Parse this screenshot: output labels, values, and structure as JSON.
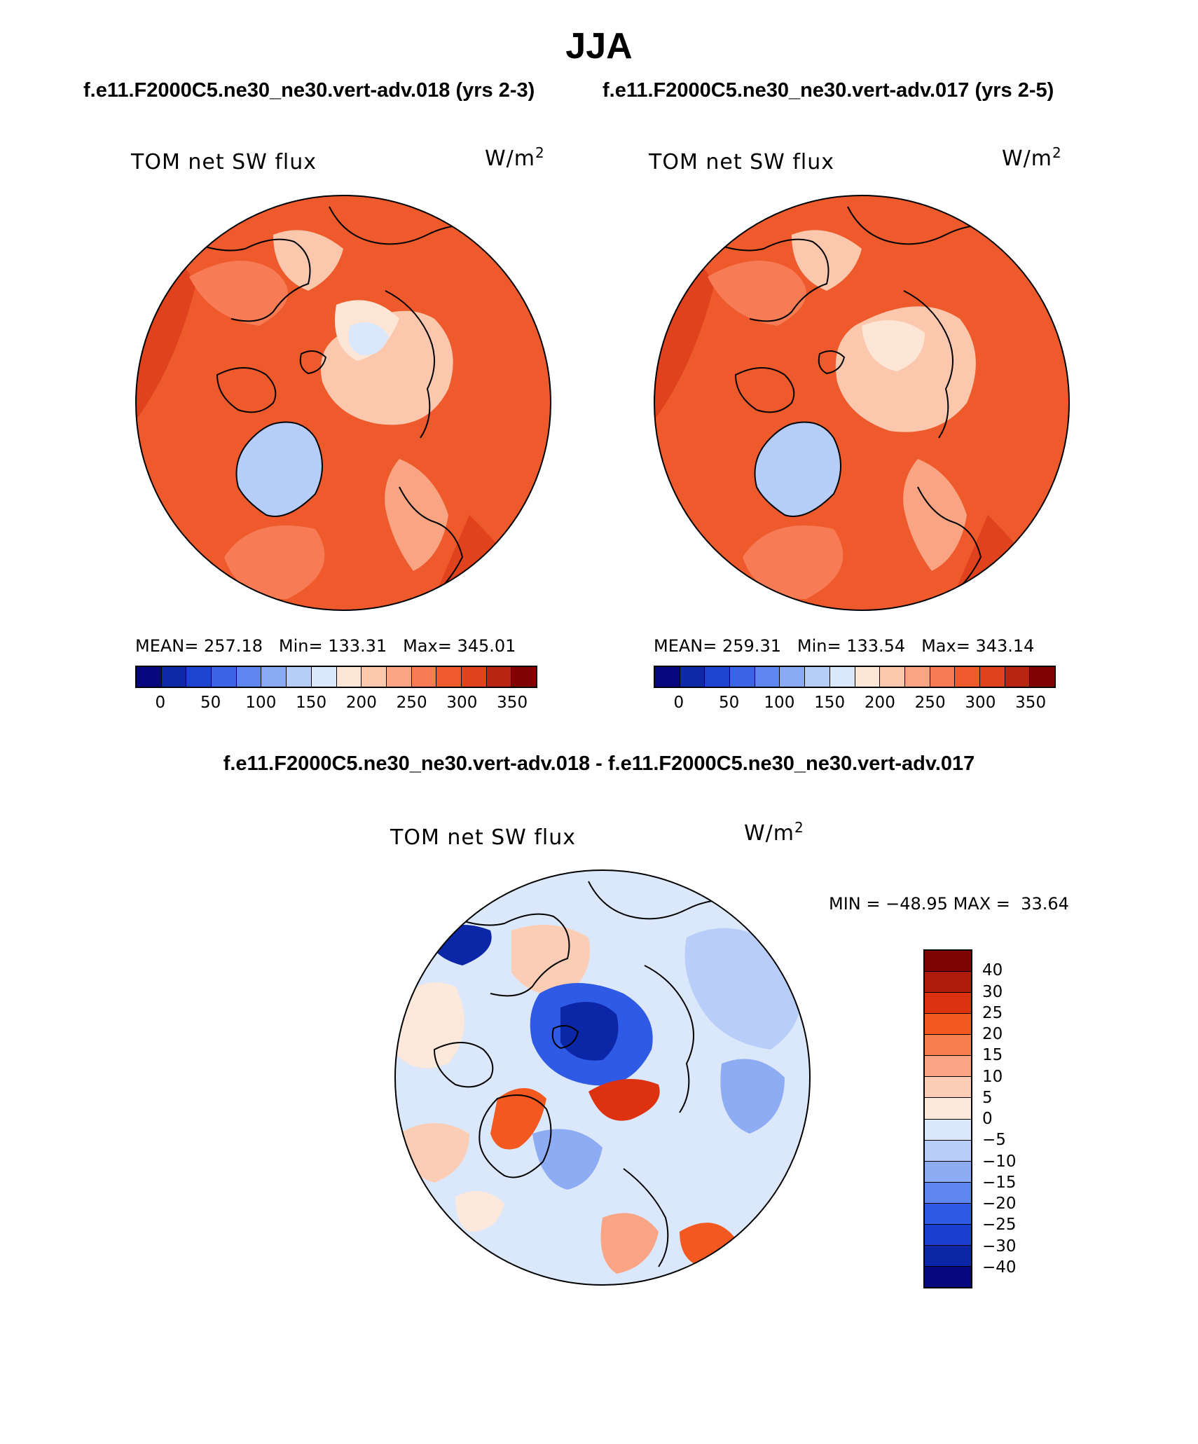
{
  "title": "JJA",
  "subtitle_left": "f.e11.F2000C5.ne30_ne30.vert-adv.018 (yrs 2-3)",
  "subtitle_right": "f.e11.F2000C5.ne30_ne30.vert-adv.017 (yrs 2-5)",
  "diff_title": "f.e11.F2000C5.ne30_ne30.vert-adv.018 - f.e11.F2000C5.ne30_ne30.vert-adv.017",
  "chart_data": [
    {
      "type": "heatmap",
      "projection": "polar stereographic (Northern Hemisphere)",
      "variable": "TOM net SW flux",
      "units_base": "W/m",
      "units_exp": "2",
      "stats": {
        "mean_label": "MEAN=",
        "mean": "257.18",
        "min_label": "Min=",
        "min": "133.31",
        "max_label": "Max=",
        "max": "345.01"
      },
      "colorbar_ticks": [
        "0",
        "50",
        "100",
        "150",
        "200",
        "250",
        "300",
        "350"
      ],
      "colorbar_colors": [
        "#08087e",
        "#0c2aa8",
        "#1c44d0",
        "#3a63e6",
        "#5e86ee",
        "#8aa9f3",
        "#b6cdf8",
        "#dbe8fb",
        "#fde6d6",
        "#fcc8ad",
        "#f9a483",
        "#f77c56",
        "#ef5a2c",
        "#e0421d",
        "#b92510",
        "#820303"
      ]
    },
    {
      "type": "heatmap",
      "projection": "polar stereographic (Northern Hemisphere)",
      "variable": "TOM net SW flux",
      "units_base": "W/m",
      "units_exp": "2",
      "stats": {
        "mean_label": "MEAN=",
        "mean": "259.31",
        "min_label": "Min=",
        "min": "133.54",
        "max_label": "Max=",
        "max": "343.14"
      },
      "colorbar_ticks": [
        "0",
        "50",
        "100",
        "150",
        "200",
        "250",
        "300",
        "350"
      ],
      "colorbar_colors": [
        "#08087e",
        "#0c2aa8",
        "#1c44d0",
        "#3a63e6",
        "#5e86ee",
        "#8aa9f3",
        "#b6cdf8",
        "#dbe8fb",
        "#fde6d6",
        "#fcc8ad",
        "#f9a483",
        "#f77c56",
        "#ef5a2c",
        "#e0421d",
        "#b92510",
        "#820303"
      ]
    },
    {
      "type": "heatmap",
      "projection": "polar stereographic (Northern Hemisphere)",
      "variable": "TOM net SW flux",
      "units_base": "W/m",
      "units_exp": "2",
      "stats_line": {
        "min_label": "MIN =",
        "min": "−48.95",
        "max_label": "MAX =",
        "max": "33.64"
      },
      "colorbar_ticks": [
        "40",
        "30",
        "25",
        "20",
        "15",
        "10",
        "5",
        "0",
        "−5",
        "−10",
        "−15",
        "−20",
        "−25",
        "−30",
        "−40"
      ],
      "colorbar_colors": [
        "#7f0303",
        "#b01b0b",
        "#dc3210",
        "#f2581f",
        "#f77f4f",
        "#f9a585",
        "#fccdb5",
        "#fde9dc",
        "#dbe8fb",
        "#b8cef8",
        "#8eacf3",
        "#5f86ee",
        "#2f5ae6",
        "#1a3ed0",
        "#0c26a8",
        "#08087e"
      ]
    }
  ]
}
